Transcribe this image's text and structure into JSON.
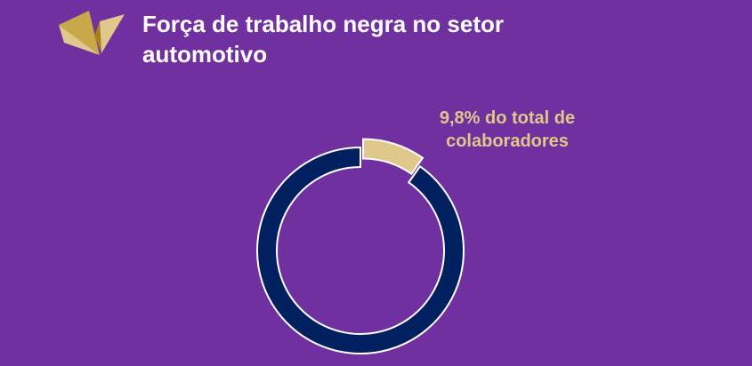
{
  "chart_data": {
    "type": "donut",
    "title": "Força de trabalho negra no setor automotivo",
    "categories": [
      null,
      null
    ],
    "values": [
      9.8,
      90.2
    ],
    "value_labels": [
      "9,8% do total de colaboradores",
      null
    ],
    "colors": [
      "#dfc88a",
      "#002060"
    ],
    "exploded": [
      true,
      false
    ]
  }
}
